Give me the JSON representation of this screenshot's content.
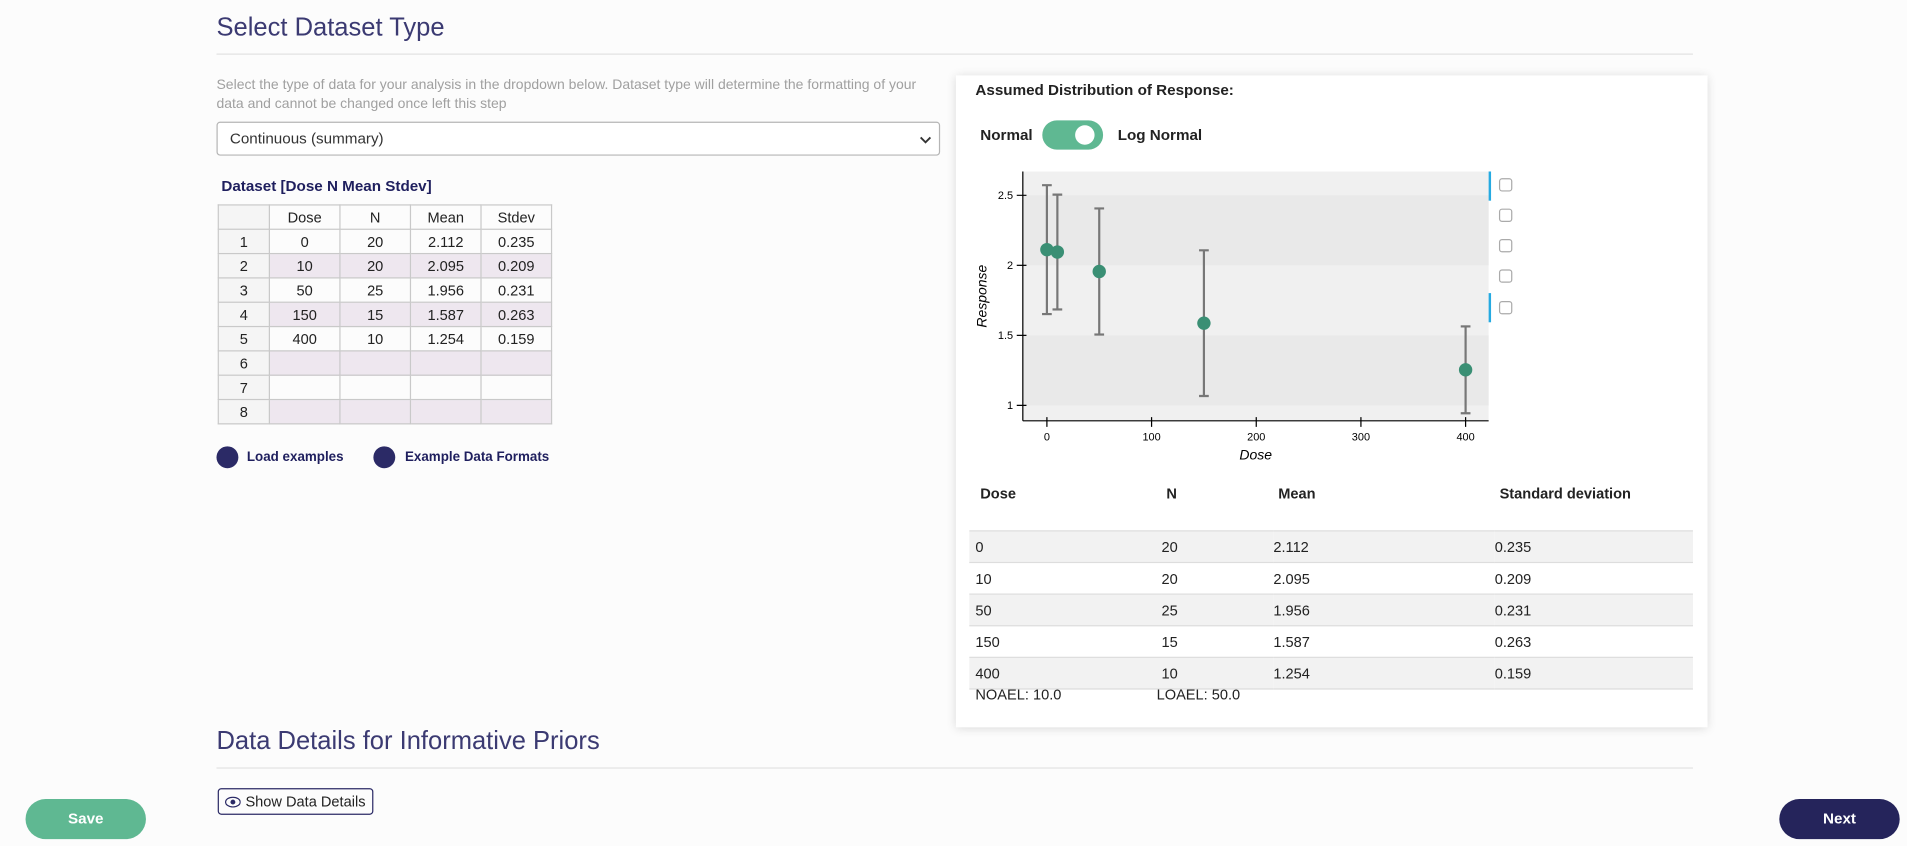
{
  "header": {
    "title": "Select Dataset Type",
    "description": "Select the type of data for your analysis in the dropdown below. Dataset type will determine the formatting of your data and cannot be changed once left this step"
  },
  "dropdown": {
    "selected": "Continuous (summary)"
  },
  "dataset_table": {
    "title": "Dataset [Dose N Mean Stdev]",
    "columns": [
      "Dose",
      "N",
      "Mean",
      "Stdev"
    ],
    "row_numbers": [
      1,
      2,
      3,
      4,
      5,
      6,
      7,
      8
    ],
    "rows": [
      [
        "0",
        "20",
        "2.112",
        "0.235"
      ],
      [
        "10",
        "20",
        "2.095",
        "0.209"
      ],
      [
        "50",
        "25",
        "1.956",
        "0.231"
      ],
      [
        "150",
        "15",
        "1.587",
        "0.263"
      ],
      [
        "400",
        "10",
        "1.254",
        "0.159"
      ]
    ]
  },
  "links": {
    "load_examples": "Load examples",
    "example_formats": "Example Data Formats"
  },
  "distribution": {
    "label": "Assumed Distribution of Response:",
    "left": "Normal",
    "right": "Log Normal"
  },
  "chart_data": {
    "type": "scatter",
    "x_label": "Dose",
    "y_label": "Response",
    "x": [
      0,
      10,
      50,
      150,
      400
    ],
    "values": [
      2.112,
      2.095,
      1.956,
      1.587,
      1.254
    ],
    "errors": [
      0.46,
      0.41,
      0.45,
      0.52,
      0.31
    ],
    "color": "#3a8f74",
    "error_color": "#777777",
    "xlim": [
      -23,
      422
    ],
    "ylim": [
      0.89,
      2.67
    ],
    "xticks": [
      0,
      100,
      200,
      300,
      400
    ],
    "yticks": [
      1,
      1.5,
      2,
      2.5
    ]
  },
  "summary_table": {
    "columns": [
      "Dose",
      "N",
      "Mean",
      "Standard deviation"
    ],
    "rows": [
      [
        "0",
        "20",
        "2.112",
        "0.235"
      ],
      [
        "10",
        "20",
        "2.095",
        "0.209"
      ],
      [
        "50",
        "25",
        "1.956",
        "0.231"
      ],
      [
        "150",
        "15",
        "1.587",
        "0.263"
      ],
      [
        "400",
        "10",
        "1.254",
        "0.159"
      ]
    ],
    "noael": "NOAEL: 10.0",
    "loael": "LOAEL: 50.0"
  },
  "section2": {
    "title": "Data Details for Informative Priors",
    "button": "Show Data Details"
  },
  "footer": {
    "save": "Save",
    "next": "Next"
  }
}
